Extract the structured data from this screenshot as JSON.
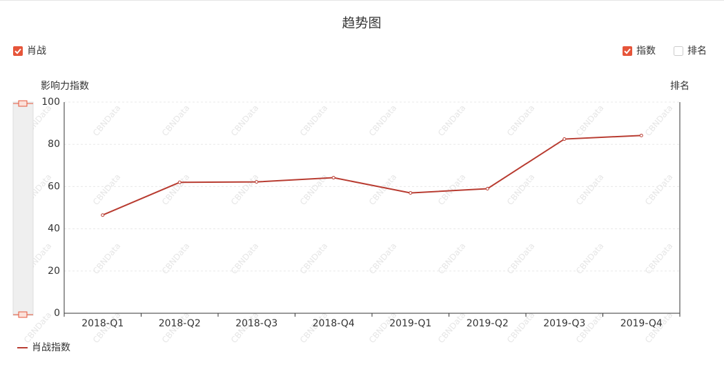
{
  "chart_data": {
    "type": "line",
    "title": "趋势图",
    "watermark": "CBNData",
    "filter_label": "肖战",
    "toggles": [
      {
        "label": "指数",
        "checked": true
      },
      {
        "label": "排名",
        "checked": false
      }
    ],
    "y_label": "影响力指数",
    "y2_label": "排名",
    "categories": [
      "2018-Q1",
      "2018-Q2",
      "2018-Q3",
      "2018-Q4",
      "2019-Q1",
      "2019-Q2",
      "2019-Q3",
      "2019-Q4"
    ],
    "series": [
      {
        "name": "肖战指数",
        "color": "#b83b30",
        "values": [
          46.5,
          62,
          62.2,
          64.2,
          57,
          59,
          82.5,
          84.2
        ]
      }
    ],
    "ylim": [
      0,
      100
    ],
    "yticks": [
      0,
      20,
      40,
      60,
      80,
      100
    ],
    "grid": true,
    "accent": "#e6553a"
  }
}
